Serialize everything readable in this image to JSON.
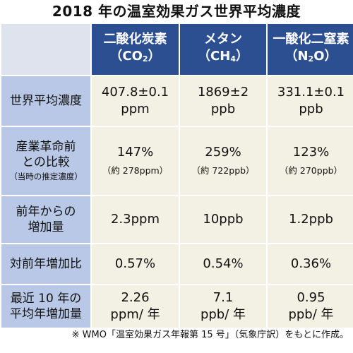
{
  "title": "2018 年の温室効果ガス世界平均濃度",
  "columns": [
    {
      "name": "二酸化炭素",
      "formula_main": "（CO",
      "formula_sub": "2",
      "formula_end": "）"
    },
    {
      "name": "メタン",
      "formula_main": "（CH",
      "formula_sub": "4",
      "formula_end": "）"
    },
    {
      "name": "一酸化二窒素",
      "formula_main": "（N",
      "formula_sub": "2",
      "formula_end": "O）"
    }
  ],
  "rows": [
    {
      "label_lines": [
        "世界平均濃度"
      ],
      "values": [
        {
          "lines": [
            "407.8±0.1",
            "ppm"
          ]
        },
        {
          "lines": [
            "1869±2",
            "ppb"
          ]
        },
        {
          "lines": [
            "331.1±0.1",
            "ppb"
          ]
        }
      ]
    },
    {
      "label_lines": [
        "産業革命前",
        "との比較"
      ],
      "label_note": "（当時の推定濃度）",
      "values": [
        {
          "lines": [
            "147%"
          ],
          "note": "（約 278ppm）"
        },
        {
          "lines": [
            "259%"
          ],
          "note": "（約 722ppb）"
        },
        {
          "lines": [
            "123%"
          ],
          "note": "（約 270ppb）"
        }
      ]
    },
    {
      "label_lines": [
        "前年からの",
        "増加量"
      ],
      "values": [
        {
          "lines": [
            "2.3ppm"
          ]
        },
        {
          "lines": [
            "10ppb"
          ]
        },
        {
          "lines": [
            "1.2ppb"
          ]
        }
      ]
    },
    {
      "label_lines": [
        "対前年増加比"
      ],
      "values": [
        {
          "lines": [
            "0.57%"
          ]
        },
        {
          "lines": [
            "0.54%"
          ]
        },
        {
          "lines": [
            "0.36%"
          ]
        }
      ]
    },
    {
      "label_lines": [
        "最近 10 年の",
        "平均年増加量"
      ],
      "values": [
        {
          "lines": [
            "2.26",
            "ppm/ 年"
          ]
        },
        {
          "lines": [
            "7.1",
            "ppb/ 年"
          ]
        },
        {
          "lines": [
            "0.95",
            "ppb/ 年"
          ]
        }
      ]
    }
  ],
  "footnote": "※ WMO「温室効果ガス年報第 15 号」（気象庁訳）をもとに作成。"
}
